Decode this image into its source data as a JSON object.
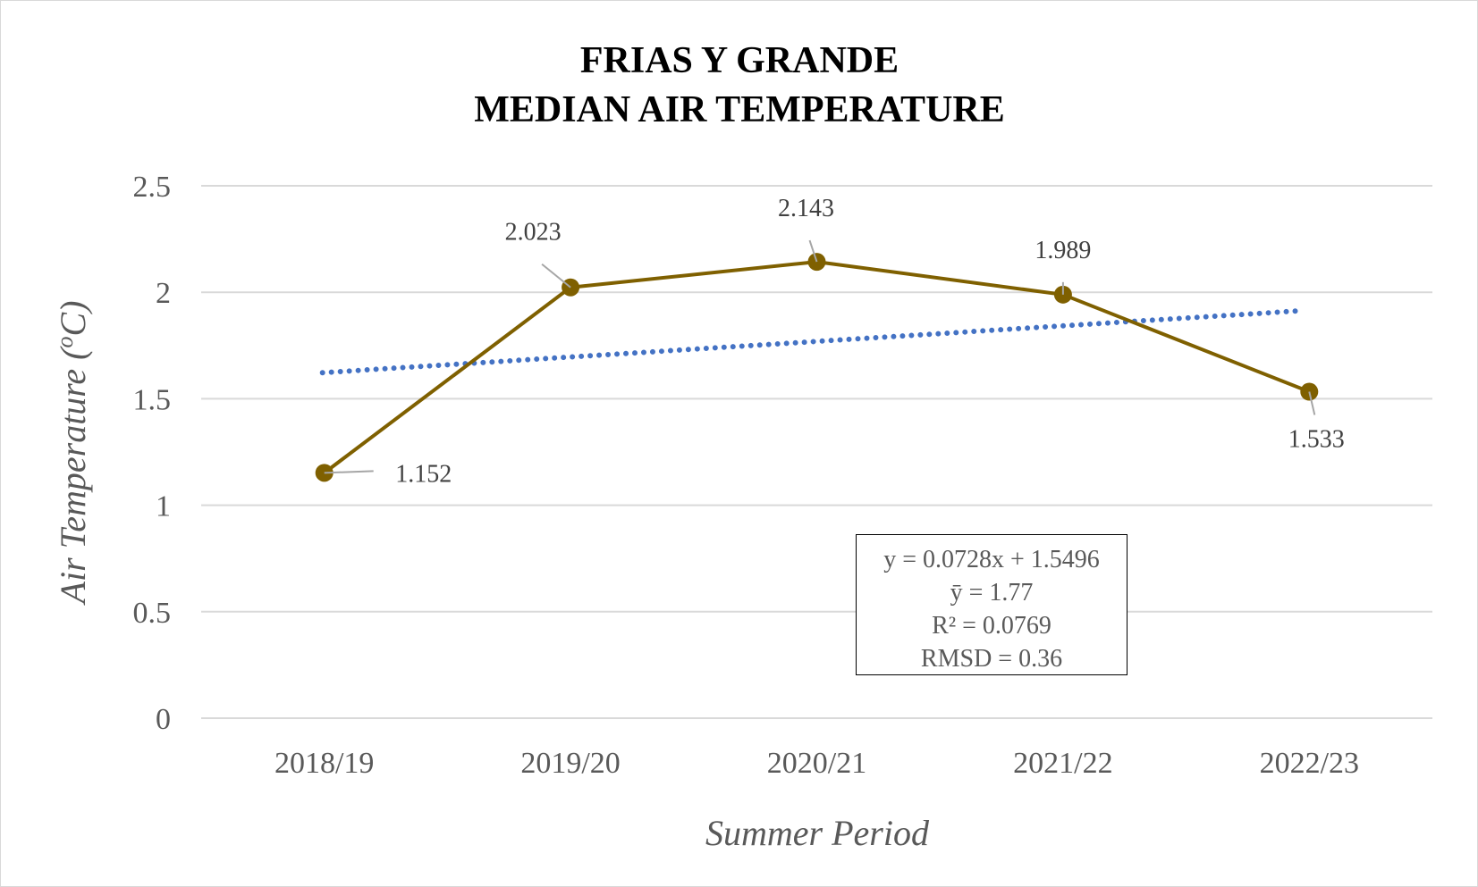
{
  "chart_data": {
    "type": "line",
    "title": [
      "FRIAS Y GRANDE",
      "MEDIAN AIR TEMPERATURE"
    ],
    "xlabel": "Summer Period",
    "ylabel": "Air Temperature (",
    "ylabel_sup": "o",
    "ylabel_unit": "C)",
    "categories": [
      "2018/19",
      "2019/20",
      "2020/21",
      "2021/22",
      "2022/23"
    ],
    "yticks": [
      "0",
      "0.5",
      "1",
      "1.5",
      "2",
      "2.5"
    ],
    "ylim": [
      0,
      2.5
    ],
    "grid": true,
    "series": [
      {
        "name": "Median air temperature",
        "values": [
          1.152,
          2.023,
          2.143,
          1.989,
          1.533
        ],
        "labels": [
          "1.152",
          "2.023",
          "2.143",
          "1.989",
          "1.533"
        ],
        "color": "#7f6000"
      }
    ],
    "trendline": {
      "type": "linear",
      "slope": 0.0728,
      "intercept": 1.5496,
      "color": "#4472c4",
      "style": "dotted"
    },
    "stats": {
      "equation": "y = 0.0728x + 1.5496",
      "mean": "ȳ = 1.77",
      "r2": "R² = 0.0769",
      "rmsd": "RMSD = 0.36"
    }
  }
}
